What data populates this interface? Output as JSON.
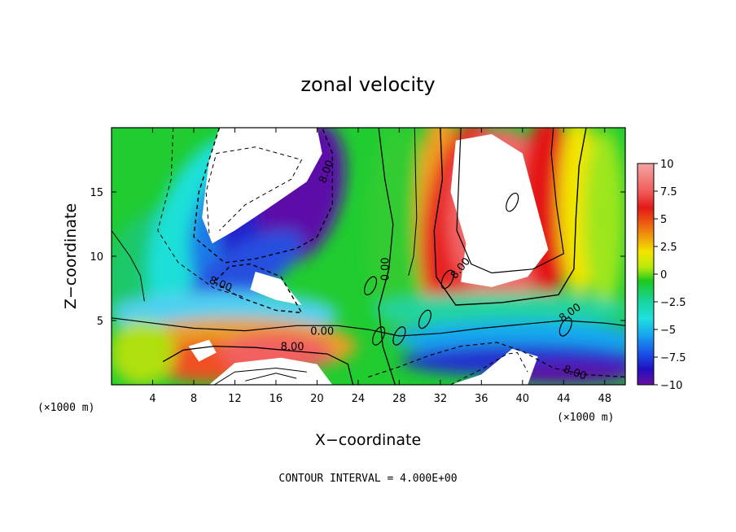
{
  "chart_data": {
    "type": "heatmap",
    "title": "zonal velocity",
    "xlabel": "X−coordinate",
    "ylabel": "Z−coordinate",
    "x_unit_note": "(×1000 m)",
    "z_unit_note": "(×1000 m)",
    "xlim": [
      0,
      50
    ],
    "ylim": [
      0,
      20
    ],
    "x_ticks": [
      4,
      8,
      12,
      16,
      20,
      24,
      28,
      32,
      36,
      40,
      44,
      48
    ],
    "y_ticks": [
      5,
      10,
      15
    ],
    "colorbar": {
      "min": -10,
      "max": 10,
      "ticks": [
        "10",
        "7.5",
        "5",
        "2.5",
        "0",
        "−2.5",
        "−5",
        "−7.5",
        "−10"
      ],
      "above_max_color": "#ffffff",
      "below_min_color": "#5c0a8f"
    },
    "contour_interval": 4.0,
    "contour_labels": [
      {
        "text": "8.00",
        "x": 21.2,
        "z": 16.5,
        "rot": -70
      },
      {
        "text": "8.00",
        "x": 10.5,
        "z": 7.6,
        "rot": 22
      },
      {
        "text": "0.00",
        "x": 20.5,
        "z": 3.9,
        "rot": 0
      },
      {
        "text": "8.00",
        "x": 17.6,
        "z": 2.7,
        "rot": 0
      },
      {
        "text": "0.00",
        "x": 27.0,
        "z": 9.0,
        "rot": -90
      },
      {
        "text": "8.00",
        "x": 34.2,
        "z": 8.9,
        "rot": -50
      },
      {
        "text": "8.00",
        "x": 44.8,
        "z": 5.4,
        "rot": -35
      },
      {
        "text": "8.00",
        "x": 45.0,
        "z": 0.7,
        "rot": 20
      }
    ],
    "footer": "CONTOUR INTERVAL = 4.000E+00"
  }
}
